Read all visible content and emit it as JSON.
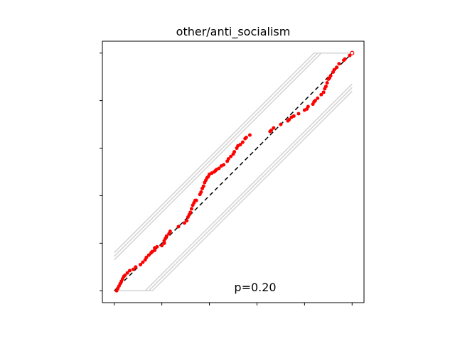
{
  "chart_data": {
    "type": "scatter",
    "title": "other/anti_socialism",
    "annotation": "p=0.20",
    "xlabel": "",
    "ylabel": "",
    "xlim": [
      -0.05,
      1.05
    ],
    "ylim": [
      -0.05,
      1.05
    ],
    "x_ticks": [
      0,
      0.2,
      0.4,
      0.6,
      0.8,
      1.0
    ],
    "y_ticks": [
      0,
      0.2,
      0.4,
      0.6,
      0.8,
      1.0
    ],
    "tick_labels_shown": false,
    "grid": false,
    "reference_line": {
      "from": [
        0,
        0
      ],
      "to": [
        1,
        1
      ],
      "style": "dashed",
      "color": "#000000"
    },
    "envelope_lines": {
      "color": "#d3d3d3",
      "upper": [
        {
          "offset": 0.16
        },
        {
          "offset": 0.145
        },
        {
          "offset": 0.13
        }
      ],
      "lower": [
        {
          "offset": 0.16
        },
        {
          "offset": 0.145
        },
        {
          "offset": 0.13
        }
      ]
    },
    "points_color": "#ff0000",
    "points": [
      [
        0.01,
        0.0
      ],
      [
        0.015,
        0.01
      ],
      [
        0.02,
        0.02
      ],
      [
        0.025,
        0.03
      ],
      [
        0.03,
        0.04
      ],
      [
        0.035,
        0.05
      ],
      [
        0.04,
        0.06
      ],
      [
        0.045,
        0.065
      ],
      [
        0.055,
        0.075
      ],
      [
        0.065,
        0.085
      ],
      [
        0.08,
        0.09
      ],
      [
        0.09,
        0.1
      ],
      [
        0.11,
        0.11
      ],
      [
        0.12,
        0.12
      ],
      [
        0.13,
        0.13
      ],
      [
        0.135,
        0.14
      ],
      [
        0.145,
        0.15
      ],
      [
        0.155,
        0.16
      ],
      [
        0.16,
        0.165
      ],
      [
        0.17,
        0.17
      ],
      [
        0.17,
        0.18
      ],
      [
        0.18,
        0.185
      ],
      [
        0.2,
        0.19
      ],
      [
        0.21,
        0.2
      ],
      [
        0.21,
        0.21
      ],
      [
        0.215,
        0.22
      ],
      [
        0.22,
        0.23
      ],
      [
        0.23,
        0.24
      ],
      [
        0.235,
        0.25
      ],
      [
        0.27,
        0.27
      ],
      [
        0.295,
        0.285
      ],
      [
        0.305,
        0.295
      ],
      [
        0.31,
        0.31
      ],
      [
        0.315,
        0.32
      ],
      [
        0.32,
        0.33
      ],
      [
        0.325,
        0.345
      ],
      [
        0.33,
        0.36
      ],
      [
        0.335,
        0.37
      ],
      [
        0.34,
        0.38
      ],
      [
        0.345,
        0.38
      ],
      [
        0.36,
        0.405
      ],
      [
        0.365,
        0.415
      ],
      [
        0.37,
        0.43
      ],
      [
        0.375,
        0.44
      ],
      [
        0.38,
        0.455
      ],
      [
        0.385,
        0.465
      ],
      [
        0.39,
        0.475
      ],
      [
        0.395,
        0.48
      ],
      [
        0.4,
        0.49
      ],
      [
        0.41,
        0.495
      ],
      [
        0.42,
        0.5
      ],
      [
        0.425,
        0.505
      ],
      [
        0.43,
        0.51
      ],
      [
        0.44,
        0.515
      ],
      [
        0.45,
        0.525
      ],
      [
        0.46,
        0.53
      ],
      [
        0.475,
        0.545
      ],
      [
        0.48,
        0.555
      ],
      [
        0.49,
        0.565
      ],
      [
        0.5,
        0.575
      ],
      [
        0.505,
        0.585
      ],
      [
        0.515,
        0.6
      ],
      [
        0.52,
        0.61
      ],
      [
        0.53,
        0.615
      ],
      [
        0.54,
        0.625
      ],
      [
        0.55,
        0.64
      ],
      [
        0.555,
        0.645
      ],
      [
        0.57,
        0.655
      ],
      [
        0.655,
        0.67
      ],
      [
        0.66,
        0.675
      ],
      [
        0.67,
        0.685
      ],
      [
        0.7,
        0.7
      ],
      [
        0.73,
        0.715
      ],
      [
        0.735,
        0.72
      ],
      [
        0.745,
        0.73
      ],
      [
        0.755,
        0.735
      ],
      [
        0.775,
        0.745
      ],
      [
        0.8,
        0.76
      ],
      [
        0.81,
        0.765
      ],
      [
        0.815,
        0.775
      ],
      [
        0.835,
        0.785
      ],
      [
        0.84,
        0.795
      ],
      [
        0.845,
        0.8
      ],
      [
        0.855,
        0.81
      ],
      [
        0.87,
        0.825
      ],
      [
        0.88,
        0.835
      ],
      [
        0.885,
        0.85
      ],
      [
        0.89,
        0.86
      ],
      [
        0.895,
        0.875
      ],
      [
        0.9,
        0.89
      ],
      [
        0.905,
        0.895
      ],
      [
        0.91,
        0.905
      ],
      [
        0.92,
        0.92
      ],
      [
        0.925,
        0.93
      ],
      [
        0.935,
        0.94
      ],
      [
        0.945,
        0.955
      ],
      [
        0.965,
        0.97
      ],
      [
        0.97,
        0.975
      ],
      [
        0.99,
        0.99
      ],
      [
        1.0,
        1.0
      ]
    ]
  }
}
